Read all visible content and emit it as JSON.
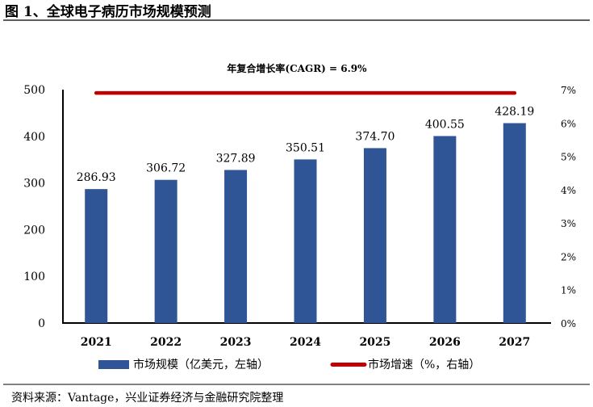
{
  "figure_title": "图 1、全球电子病历市场规模预测",
  "source": "资料来源：Vantage，兴业证券经济与金融研究院整理",
  "colors": {
    "bar": "#2F5597",
    "line": "#C00000"
  },
  "chart_data": {
    "type": "bar+line",
    "annotation": "年复合增长率(CAGR) = 6.9%",
    "categories": [
      "2021",
      "2022",
      "2023",
      "2024",
      "2025",
      "2026",
      "2027"
    ],
    "series": [
      {
        "name": "市场规模（亿美元，左轴）",
        "type": "bar",
        "axis": "left",
        "values": [
          286.93,
          306.72,
          327.89,
          350.51,
          374.7,
          400.55,
          428.19
        ],
        "labels": [
          "286.93",
          "306.72",
          "327.89",
          "350.51",
          "374.70",
          "400.55",
          "428.19"
        ]
      },
      {
        "name": "市场增速（%，右轴）",
        "type": "line",
        "axis": "right",
        "values": [
          6.9,
          6.9,
          6.9,
          6.9,
          6.9,
          6.9,
          6.9
        ]
      }
    ],
    "y_left": {
      "range": [
        0,
        500
      ],
      "ticks": [
        "0",
        "100",
        "200",
        "300",
        "400",
        "500"
      ]
    },
    "y_right": {
      "range": [
        0,
        7
      ],
      "ticks": [
        "0%",
        "1%",
        "2%",
        "3%",
        "4%",
        "5%",
        "6%",
        "7%"
      ]
    },
    "legend": "bottom",
    "grid": false
  }
}
